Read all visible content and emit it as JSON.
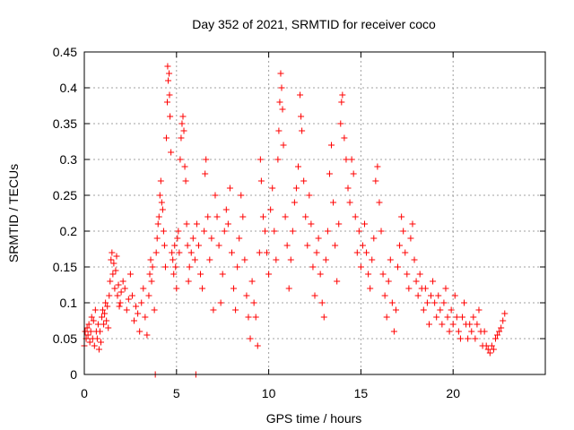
{
  "chart_data": {
    "type": "scatter",
    "title": "Day 352 of 2021, SRMTID for receiver coco",
    "xlabel": "GPS time / hours",
    "ylabel": "SRMTID / TECUs",
    "xlim": [
      0,
      25
    ],
    "ylim": [
      0,
      0.45
    ],
    "grid": true,
    "marker": "+",
    "color": "#ff0000",
    "x_ticks": [
      0,
      5,
      10,
      15,
      20
    ],
    "x_tick_labels": [
      "0",
      "5",
      "10",
      "15",
      "20"
    ],
    "y_ticks": [
      0,
      0.05,
      0.1,
      0.15,
      0.2,
      0.25,
      0.3,
      0.35,
      0.4,
      0.45
    ],
    "y_tick_labels": [
      "0",
      "0.05",
      "0.1",
      "0.15",
      "0.2",
      "0.25",
      "0.3",
      "0.35",
      "0.4",
      "0.45"
    ],
    "series": [
      {
        "name": "SRMTID",
        "points": [
          [
            0.0,
            0.04
          ],
          [
            0.05,
            0.06
          ],
          [
            0.1,
            0.05
          ],
          [
            0.15,
            0.065
          ],
          [
            0.2,
            0.055
          ],
          [
            0.25,
            0.07
          ],
          [
            0.3,
            0.045
          ],
          [
            0.35,
            0.06
          ],
          [
            0.4,
            0.08
          ],
          [
            0.45,
            0.05
          ],
          [
            0.5,
            0.075
          ],
          [
            0.55,
            0.04
          ],
          [
            0.6,
            0.09
          ],
          [
            0.65,
            0.06
          ],
          [
            0.7,
            0.05
          ],
          [
            0.75,
            0.07
          ],
          [
            0.8,
            0.035
          ],
          [
            0.85,
            0.06
          ],
          [
            0.9,
            0.045
          ],
          [
            0.95,
            0.08
          ],
          [
            1.0,
            0.09
          ],
          [
            1.05,
            0.07
          ],
          [
            1.1,
            0.085
          ],
          [
            1.15,
            0.1
          ],
          [
            1.2,
            0.075
          ],
          [
            1.25,
            0.095
          ],
          [
            1.3,
            0.065
          ],
          [
            1.35,
            0.11
          ],
          [
            1.4,
            0.13
          ],
          [
            1.45,
            0.16
          ],
          [
            1.5,
            0.17
          ],
          [
            1.55,
            0.14
          ],
          [
            1.6,
            0.155
          ],
          [
            1.65,
            0.12
          ],
          [
            1.7,
            0.145
          ],
          [
            1.75,
            0.165
          ],
          [
            1.8,
            0.11
          ],
          [
            1.85,
            0.125
          ],
          [
            1.9,
            0.095
          ],
          [
            1.95,
            0.1
          ],
          [
            2.0,
            0.115
          ],
          [
            2.1,
            0.13
          ],
          [
            2.2,
            0.12
          ],
          [
            2.3,
            0.09
          ],
          [
            2.4,
            0.105
          ],
          [
            2.5,
            0.14
          ],
          [
            2.6,
            0.11
          ],
          [
            2.7,
            0.075
          ],
          [
            2.8,
            0.095
          ],
          [
            2.9,
            0.085
          ],
          [
            3.0,
            0.06
          ],
          [
            3.1,
            0.1
          ],
          [
            3.2,
            0.12
          ],
          [
            3.3,
            0.08
          ],
          [
            3.4,
            0.055
          ],
          [
            3.5,
            0.11
          ],
          [
            3.55,
            0.14
          ],
          [
            3.6,
            0.16
          ],
          [
            3.65,
            0.13
          ],
          [
            3.7,
            0.15
          ],
          [
            3.8,
            0.09
          ],
          [
            3.85,
            0.0
          ],
          [
            3.9,
            0.17
          ],
          [
            3.95,
            0.19
          ],
          [
            4.0,
            0.21
          ],
          [
            4.05,
            0.22
          ],
          [
            4.1,
            0.25
          ],
          [
            4.15,
            0.27
          ],
          [
            4.2,
            0.24
          ],
          [
            4.25,
            0.23
          ],
          [
            4.3,
            0.2
          ],
          [
            4.35,
            0.18
          ],
          [
            4.4,
            0.15
          ],
          [
            4.45,
            0.33
          ],
          [
            4.5,
            0.38
          ],
          [
            4.52,
            0.43
          ],
          [
            4.55,
            0.41
          ],
          [
            4.6,
            0.42
          ],
          [
            4.62,
            0.39
          ],
          [
            4.65,
            0.36
          ],
          [
            4.7,
            0.31
          ],
          [
            4.75,
            0.17
          ],
          [
            4.8,
            0.16
          ],
          [
            4.85,
            0.14
          ],
          [
            4.9,
            0.18
          ],
          [
            4.95,
            0.15
          ],
          [
            5.0,
            0.12
          ],
          [
            5.05,
            0.19
          ],
          [
            5.1,
            0.2
          ],
          [
            5.15,
            0.17
          ],
          [
            5.2,
            0.3
          ],
          [
            5.25,
            0.33
          ],
          [
            5.3,
            0.35
          ],
          [
            5.35,
            0.36
          ],
          [
            5.4,
            0.34
          ],
          [
            5.45,
            0.29
          ],
          [
            5.5,
            0.27
          ],
          [
            5.55,
            0.21
          ],
          [
            5.6,
            0.18
          ],
          [
            5.65,
            0.13
          ],
          [
            5.7,
            0.15
          ],
          [
            5.8,
            0.17
          ],
          [
            5.9,
            0.19
          ],
          [
            6.0,
            0.16
          ],
          [
            6.05,
            0.0
          ],
          [
            6.1,
            0.21
          ],
          [
            6.2,
            0.18
          ],
          [
            6.3,
            0.14
          ],
          [
            6.4,
            0.12
          ],
          [
            6.5,
            0.2
          ],
          [
            6.55,
            0.28
          ],
          [
            6.6,
            0.3
          ],
          [
            6.7,
            0.22
          ],
          [
            6.8,
            0.16
          ],
          [
            6.9,
            0.19
          ],
          [
            7.0,
            0.09
          ],
          [
            7.1,
            0.25
          ],
          [
            7.2,
            0.22
          ],
          [
            7.3,
            0.18
          ],
          [
            7.4,
            0.1
          ],
          [
            7.5,
            0.14
          ],
          [
            7.6,
            0.2
          ],
          [
            7.7,
            0.23
          ],
          [
            7.8,
            0.21
          ],
          [
            7.9,
            0.26
          ],
          [
            8.0,
            0.17
          ],
          [
            8.1,
            0.12
          ],
          [
            8.2,
            0.09
          ],
          [
            8.3,
            0.15
          ],
          [
            8.4,
            0.19
          ],
          [
            8.5,
            0.25
          ],
          [
            8.6,
            0.22
          ],
          [
            8.7,
            0.16
          ],
          [
            8.8,
            0.11
          ],
          [
            8.9,
            0.08
          ],
          [
            9.0,
            0.05
          ],
          [
            9.1,
            0.13
          ],
          [
            9.2,
            0.1
          ],
          [
            9.3,
            0.08
          ],
          [
            9.4,
            0.04
          ],
          [
            9.5,
            0.17
          ],
          [
            9.55,
            0.3
          ],
          [
            9.6,
            0.27
          ],
          [
            9.7,
            0.22
          ],
          [
            9.8,
            0.2
          ],
          [
            9.9,
            0.17
          ],
          [
            10.0,
            0.14
          ],
          [
            10.1,
            0.23
          ],
          [
            10.2,
            0.26
          ],
          [
            10.3,
            0.2
          ],
          [
            10.4,
            0.16
          ],
          [
            10.5,
            0.3
          ],
          [
            10.55,
            0.34
          ],
          [
            10.6,
            0.38
          ],
          [
            10.65,
            0.42
          ],
          [
            10.7,
            0.4
          ],
          [
            10.75,
            0.37
          ],
          [
            10.8,
            0.32
          ],
          [
            10.9,
            0.22
          ],
          [
            11.0,
            0.18
          ],
          [
            11.1,
            0.12
          ],
          [
            11.2,
            0.16
          ],
          [
            11.3,
            0.2
          ],
          [
            11.4,
            0.24
          ],
          [
            11.5,
            0.26
          ],
          [
            11.6,
            0.29
          ],
          [
            11.7,
            0.39
          ],
          [
            11.75,
            0.36
          ],
          [
            11.8,
            0.34
          ],
          [
            11.9,
            0.27
          ],
          [
            12.0,
            0.22
          ],
          [
            12.1,
            0.18
          ],
          [
            12.2,
            0.25
          ],
          [
            12.3,
            0.21
          ],
          [
            12.4,
            0.15
          ],
          [
            12.5,
            0.11
          ],
          [
            12.6,
            0.17
          ],
          [
            12.7,
            0.19
          ],
          [
            12.8,
            0.14
          ],
          [
            12.9,
            0.1
          ],
          [
            13.0,
            0.08
          ],
          [
            13.1,
            0.16
          ],
          [
            13.2,
            0.2
          ],
          [
            13.3,
            0.28
          ],
          [
            13.4,
            0.32
          ],
          [
            13.5,
            0.24
          ],
          [
            13.6,
            0.18
          ],
          [
            13.7,
            0.13
          ],
          [
            13.8,
            0.21
          ],
          [
            13.9,
            0.35
          ],
          [
            13.95,
            0.38
          ],
          [
            14.0,
            0.39
          ],
          [
            14.1,
            0.33
          ],
          [
            14.2,
            0.3
          ],
          [
            14.3,
            0.26
          ],
          [
            14.4,
            0.24
          ],
          [
            14.5,
            0.3
          ],
          [
            14.6,
            0.28
          ],
          [
            14.7,
            0.22
          ],
          [
            14.8,
            0.17
          ],
          [
            14.9,
            0.2
          ],
          [
            15.0,
            0.15
          ],
          [
            15.1,
            0.18
          ],
          [
            15.2,
            0.21
          ],
          [
            15.3,
            0.17
          ],
          [
            15.4,
            0.14
          ],
          [
            15.5,
            0.12
          ],
          [
            15.6,
            0.16
          ],
          [
            15.7,
            0.19
          ],
          [
            15.8,
            0.27
          ],
          [
            15.9,
            0.29
          ],
          [
            16.0,
            0.24
          ],
          [
            16.1,
            0.2
          ],
          [
            16.2,
            0.14
          ],
          [
            16.3,
            0.11
          ],
          [
            16.4,
            0.08
          ],
          [
            16.5,
            0.13
          ],
          [
            16.6,
            0.16
          ],
          [
            16.7,
            0.1
          ],
          [
            16.8,
            0.06
          ],
          [
            16.9,
            0.09
          ],
          [
            17.0,
            0.15
          ],
          [
            17.1,
            0.18
          ],
          [
            17.2,
            0.22
          ],
          [
            17.3,
            0.2
          ],
          [
            17.4,
            0.17
          ],
          [
            17.5,
            0.14
          ],
          [
            17.6,
            0.12
          ],
          [
            17.7,
            0.19
          ],
          [
            17.8,
            0.21
          ],
          [
            17.9,
            0.16
          ],
          [
            18.0,
            0.13
          ],
          [
            18.1,
            0.11
          ],
          [
            18.2,
            0.14
          ],
          [
            18.3,
            0.12
          ],
          [
            18.4,
            0.09
          ],
          [
            18.5,
            0.12
          ],
          [
            18.6,
            0.1
          ],
          [
            18.7,
            0.07
          ],
          [
            18.8,
            0.11
          ],
          [
            18.9,
            0.13
          ],
          [
            19.0,
            0.1
          ],
          [
            19.1,
            0.08
          ],
          [
            19.2,
            0.11
          ],
          [
            19.3,
            0.09
          ],
          [
            19.4,
            0.07
          ],
          [
            19.5,
            0.1
          ],
          [
            19.6,
            0.12
          ],
          [
            19.7,
            0.08
          ],
          [
            19.8,
            0.06
          ],
          [
            19.9,
            0.09
          ],
          [
            20.0,
            0.07
          ],
          [
            20.1,
            0.11
          ],
          [
            20.2,
            0.08
          ],
          [
            20.3,
            0.06
          ],
          [
            20.4,
            0.05
          ],
          [
            20.5,
            0.08
          ],
          [
            20.6,
            0.1
          ],
          [
            20.7,
            0.07
          ],
          [
            20.8,
            0.05
          ],
          [
            20.9,
            0.07
          ],
          [
            21.0,
            0.06
          ],
          [
            21.1,
            0.08
          ],
          [
            21.2,
            0.05
          ],
          [
            21.3,
            0.07
          ],
          [
            21.4,
            0.09
          ],
          [
            21.5,
            0.06
          ],
          [
            21.6,
            0.04
          ],
          [
            21.7,
            0.06
          ],
          [
            21.8,
            0.04
          ],
          [
            21.9,
            0.035
          ],
          [
            22.0,
            0.03
          ],
          [
            22.1,
            0.04
          ],
          [
            22.2,
            0.035
          ],
          [
            22.3,
            0.05
          ],
          [
            22.4,
            0.055
          ],
          [
            22.5,
            0.06
          ],
          [
            22.6,
            0.065
          ],
          [
            22.7,
            0.075
          ],
          [
            22.8,
            0.085
          ]
        ]
      }
    ]
  }
}
